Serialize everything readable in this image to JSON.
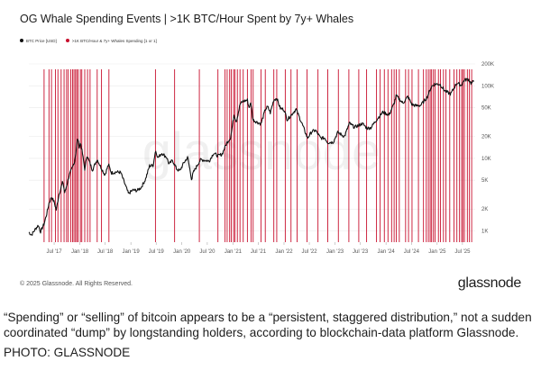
{
  "chart_data": {
    "type": "line",
    "title": "OG Whale Spending Events | >1K BTC/Hour Spent by 7y+ Whales",
    "xlabel": "",
    "ylabel": "",
    "y_scale": "log",
    "ylim": [
      700,
      200000
    ],
    "y_ticks": [
      {
        "value": 1000,
        "label": "1K"
      },
      {
        "value": 2000,
        "label": "2K"
      },
      {
        "value": 5000,
        "label": "5K"
      },
      {
        "value": 10000,
        "label": "10K"
      },
      {
        "value": 20000,
        "label": "20K"
      },
      {
        "value": 50000,
        "label": "50K"
      },
      {
        "value": 100000,
        "label": "100K"
      },
      {
        "value": 200000,
        "label": "200K"
      }
    ],
    "xlim": [
      "2017-01-01",
      "2025-09-30"
    ],
    "x_ticks": [
      {
        "date": "2017-07-01",
        "label": "Jul '17"
      },
      {
        "date": "2018-01-01",
        "label": "Jan '18"
      },
      {
        "date": "2018-07-01",
        "label": "Jul '18"
      },
      {
        "date": "2019-01-01",
        "label": "Jan '19"
      },
      {
        "date": "2019-07-01",
        "label": "Jul '19"
      },
      {
        "date": "2020-01-01",
        "label": "Jan '20"
      },
      {
        "date": "2020-07-01",
        "label": "Jul '20"
      },
      {
        "date": "2021-01-01",
        "label": "Jan '21"
      },
      {
        "date": "2021-07-01",
        "label": "Jul '21"
      },
      {
        "date": "2022-01-01",
        "label": "Jan '22"
      },
      {
        "date": "2022-07-01",
        "label": "Jul '22"
      },
      {
        "date": "2023-01-01",
        "label": "Jan '23"
      },
      {
        "date": "2023-07-01",
        "label": "Jul '23"
      },
      {
        "date": "2024-01-01",
        "label": "Jan '24"
      },
      {
        "date": "2024-07-01",
        "label": "Jul '24"
      },
      {
        "date": "2025-01-01",
        "label": "Jan '25"
      },
      {
        "date": "2025-07-01",
        "label": "Jul '25"
      }
    ],
    "grid": true,
    "legend_position": "top-left",
    "series": [
      {
        "name": "BTC Price [USD]",
        "type": "line",
        "color": "#111111",
        "points": [
          [
            "2017-01-01",
            960
          ],
          [
            "2017-01-20",
            880
          ],
          [
            "2017-02-15",
            1050
          ],
          [
            "2017-03-10",
            1200
          ],
          [
            "2017-03-25",
            970
          ],
          [
            "2017-04-20",
            1250
          ],
          [
            "2017-05-10",
            1750
          ],
          [
            "2017-05-25",
            2400
          ],
          [
            "2017-06-12",
            2950
          ],
          [
            "2017-07-01",
            2500
          ],
          [
            "2017-07-16",
            1950
          ],
          [
            "2017-08-05",
            3200
          ],
          [
            "2017-09-01",
            4800
          ],
          [
            "2017-09-15",
            3300
          ],
          [
            "2017-10-15",
            5700
          ],
          [
            "2017-11-08",
            7400
          ],
          [
            "2017-11-25",
            9200
          ],
          [
            "2017-12-17",
            19200
          ],
          [
            "2017-12-28",
            14200
          ],
          [
            "2018-01-06",
            16500
          ],
          [
            "2018-01-20",
            11500
          ],
          [
            "2018-02-06",
            6900
          ],
          [
            "2018-02-20",
            11100
          ],
          [
            "2018-03-10",
            9000
          ],
          [
            "2018-04-01",
            6900
          ],
          [
            "2018-05-05",
            9700
          ],
          [
            "2018-06-01",
            7500
          ],
          [
            "2018-06-29",
            5900
          ],
          [
            "2018-07-25",
            8200
          ],
          [
            "2018-08-15",
            6300
          ],
          [
            "2018-09-20",
            6500
          ],
          [
            "2018-10-20",
            6400
          ],
          [
            "2018-11-20",
            4400
          ],
          [
            "2018-12-15",
            3250
          ],
          [
            "2019-01-15",
            3650
          ],
          [
            "2019-02-15",
            3600
          ],
          [
            "2019-03-15",
            3950
          ],
          [
            "2019-04-15",
            5100
          ],
          [
            "2019-05-15",
            7900
          ],
          [
            "2019-06-10",
            8000
          ],
          [
            "2019-06-26",
            12800
          ],
          [
            "2019-07-15",
            10200
          ],
          [
            "2019-08-10",
            11800
          ],
          [
            "2019-09-15",
            10300
          ],
          [
            "2019-10-01",
            8300
          ],
          [
            "2019-10-26",
            9400
          ],
          [
            "2019-11-25",
            7100
          ],
          [
            "2019-12-17",
            6700
          ],
          [
            "2020-01-15",
            8700
          ],
          [
            "2020-02-12",
            10300
          ],
          [
            "2020-03-12",
            5000
          ],
          [
            "2020-03-20",
            6200
          ],
          [
            "2020-04-30",
            8700
          ],
          [
            "2020-05-15",
            9600
          ],
          [
            "2020-06-15",
            9400
          ],
          [
            "2020-07-15",
            9200
          ],
          [
            "2020-08-15",
            11800
          ],
          [
            "2020-09-15",
            10800
          ],
          [
            "2020-10-15",
            11400
          ],
          [
            "2020-11-15",
            16000
          ],
          [
            "2020-12-15",
            19400
          ],
          [
            "2021-01-08",
            40000
          ],
          [
            "2021-01-25",
            32000
          ],
          [
            "2021-02-21",
            56000
          ],
          [
            "2021-03-13",
            61000
          ],
          [
            "2021-04-14",
            63500
          ],
          [
            "2021-04-25",
            50000
          ],
          [
            "2021-05-10",
            58000
          ],
          [
            "2021-05-23",
            34000
          ],
          [
            "2021-06-22",
            31500
          ],
          [
            "2021-07-20",
            29800
          ],
          [
            "2021-08-20",
            47000
          ],
          [
            "2021-09-06",
            51500
          ],
          [
            "2021-09-25",
            42500
          ],
          [
            "2021-10-20",
            64000
          ],
          [
            "2021-11-10",
            67500
          ],
          [
            "2021-12-05",
            49000
          ],
          [
            "2022-01-01",
            47000
          ],
          [
            "2022-01-24",
            34000
          ],
          [
            "2022-03-28",
            47500
          ],
          [
            "2022-05-10",
            30000
          ],
          [
            "2022-06-18",
            19000
          ],
          [
            "2022-07-20",
            23500
          ],
          [
            "2022-08-15",
            24200
          ],
          [
            "2022-09-20",
            19000
          ],
          [
            "2022-10-20",
            19100
          ],
          [
            "2022-11-10",
            16500
          ],
          [
            "2022-12-20",
            16800
          ],
          [
            "2023-01-20",
            22800
          ],
          [
            "2023-03-10",
            20000
          ],
          [
            "2023-04-14",
            30500
          ],
          [
            "2023-05-20",
            26800
          ],
          [
            "2023-06-20",
            28500
          ],
          [
            "2023-07-15",
            30200
          ],
          [
            "2023-08-18",
            26000
          ],
          [
            "2023-09-15",
            26500
          ],
          [
            "2023-10-25",
            34000
          ],
          [
            "2023-12-10",
            43500
          ],
          [
            "2024-01-22",
            39500
          ],
          [
            "2024-02-28",
            57000
          ],
          [
            "2024-03-14",
            73000
          ],
          [
            "2024-05-01",
            57500
          ],
          [
            "2024-06-05",
            71000
          ],
          [
            "2024-07-05",
            55000
          ],
          [
            "2024-08-05",
            53000
          ],
          [
            "2024-09-06",
            54000
          ],
          [
            "2024-10-20",
            69000
          ],
          [
            "2024-11-22",
            98000
          ],
          [
            "2024-12-17",
            106000
          ],
          [
            "2025-01-20",
            105000
          ],
          [
            "2025-02-28",
            84000
          ],
          [
            "2025-04-08",
            77000
          ],
          [
            "2025-05-22",
            110000
          ],
          [
            "2025-06-22",
            101000
          ],
          [
            "2025-07-14",
            120000
          ],
          [
            "2025-08-14",
            123000
          ],
          [
            "2025-09-01",
            108000
          ],
          [
            "2025-09-20",
            115000
          ]
        ]
      },
      {
        "name": ">1K BTC/Hour & 7y+ Whales Spending [1 or 1]",
        "type": "events",
        "color": "#c8102e",
        "dates": [
          "2017-04-20",
          "2017-05-25",
          "2017-06-12",
          "2017-07-10",
          "2017-07-28",
          "2017-08-20",
          "2017-09-10",
          "2017-09-28",
          "2017-10-10",
          "2017-10-28",
          "2017-11-10",
          "2017-11-20",
          "2017-12-01",
          "2017-12-10",
          "2017-12-20",
          "2018-01-05",
          "2018-01-15",
          "2018-02-05",
          "2018-02-25",
          "2018-03-15",
          "2018-05-05",
          "2018-06-05",
          "2018-07-28",
          "2019-06-26",
          "2019-11-10",
          "2020-05-05",
          "2020-09-15",
          "2020-11-05",
          "2020-11-20",
          "2020-12-08",
          "2020-12-20",
          "2021-01-05",
          "2021-01-15",
          "2021-02-01",
          "2021-02-20",
          "2021-03-15",
          "2021-04-14",
          "2021-05-10",
          "2021-05-25",
          "2021-07-20",
          "2021-08-20",
          "2021-10-20",
          "2021-11-10",
          "2022-01-10",
          "2022-02-20",
          "2022-04-05",
          "2022-06-15",
          "2022-09-01",
          "2022-11-10",
          "2023-01-25",
          "2023-04-10",
          "2023-06-20",
          "2023-08-15",
          "2023-10-25",
          "2023-11-20",
          "2023-12-20",
          "2024-01-15",
          "2024-02-10",
          "2024-02-28",
          "2024-03-14",
          "2024-04-05",
          "2024-05-20",
          "2024-06-10",
          "2024-07-05",
          "2024-08-20",
          "2024-09-25",
          "2024-10-15",
          "2024-10-30",
          "2024-11-12",
          "2024-11-22",
          "2024-12-05",
          "2024-12-17",
          "2025-01-10",
          "2025-01-25",
          "2025-02-15",
          "2025-03-05",
          "2025-04-01",
          "2025-05-01",
          "2025-05-22",
          "2025-06-10",
          "2025-06-25",
          "2025-07-04",
          "2025-07-15",
          "2025-08-05",
          "2025-08-20",
          "2025-09-05"
        ]
      }
    ]
  },
  "watermark": "glassnode",
  "copyright": "© 2025 Glassnode. All Rights Reserved.",
  "footer_logo": "glassnode",
  "caption": "“Spending” or “selling” of bitcoin appears to be a “persistent, staggered distribution,” not a sudden coordinated “dump” by longstanding holders, according to blockchain-data platform Glassnode.",
  "photo_credit": "PHOTO: GLASSNODE"
}
